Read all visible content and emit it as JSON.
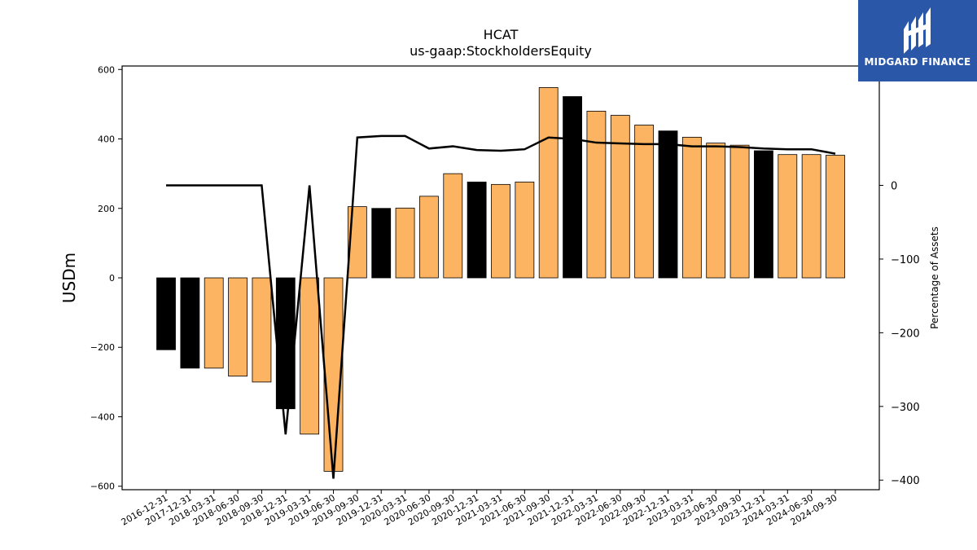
{
  "chart_data": {
    "type": "bar",
    "title": "HCAT",
    "subtitle": "us-gaap:StockholdersEquity",
    "ylabel": "USDm",
    "y2label": "Percentage of Assets",
    "ylim": [
      -610,
      610
    ],
    "y2lim": [
      -413,
      162
    ],
    "yticks": [
      -600,
      -400,
      -200,
      0,
      200,
      400,
      600
    ],
    "y2ticks": [
      -400,
      -300,
      -200,
      -100,
      0
    ],
    "categories": [
      "2016-12-31",
      "2017-12-31",
      "2018-03-31",
      "2018-06-30",
      "2018-09-30",
      "2018-12-31",
      "2019-03-31",
      "2019-06-30",
      "2019-09-30",
      "2019-12-31",
      "2020-03-31",
      "2020-06-30",
      "2020-09-30",
      "2020-12-31",
      "2021-03-31",
      "2021-06-30",
      "2021-09-30",
      "2021-12-31",
      "2022-03-31",
      "2022-06-30",
      "2022-09-30",
      "2022-12-31",
      "2023-03-31",
      "2023-06-30",
      "2023-09-30",
      "2023-12-31",
      "2024-03-31",
      "2024-06-30",
      "2024-09-30"
    ],
    "series": [
      {
        "type": "bar",
        "values": [
          -207,
          -260,
          -260,
          -283,
          -300,
          -377,
          -450,
          -557,
          205,
          200,
          201,
          235,
          300,
          276,
          269,
          276,
          548,
          522,
          480,
          468,
          440,
          423,
          405,
          388,
          382,
          366,
          355,
          355,
          353
        ],
        "bar_colors": [
          "#000000",
          "#000000",
          "#fdb462",
          "#fdb462",
          "#fdb462",
          "#000000",
          "#fdb462",
          "#fdb462",
          "#fdb462",
          "#000000",
          "#fdb462",
          "#fdb462",
          "#fdb462",
          "#000000",
          "#fdb462",
          "#fdb462",
          "#fdb462",
          "#000000",
          "#fdb462",
          "#fdb462",
          "#fdb462",
          "#000000",
          "#fdb462",
          "#fdb462",
          "#fdb462",
          "#000000",
          "#fdb462",
          "#fdb462",
          "#fdb462"
        ]
      },
      {
        "type": "line",
        "axis": "right",
        "color": "#000000",
        "values": [
          0,
          0,
          0,
          0,
          0,
          -338,
          0,
          -398,
          65,
          67,
          67,
          50,
          53,
          48,
          47,
          49,
          65,
          63,
          58,
          57,
          56,
          56,
          53,
          53,
          52,
          50,
          49,
          49,
          43
        ]
      }
    ]
  },
  "logo": {
    "text": "MIDGARD FINANCE",
    "color": "#2b57a8"
  }
}
